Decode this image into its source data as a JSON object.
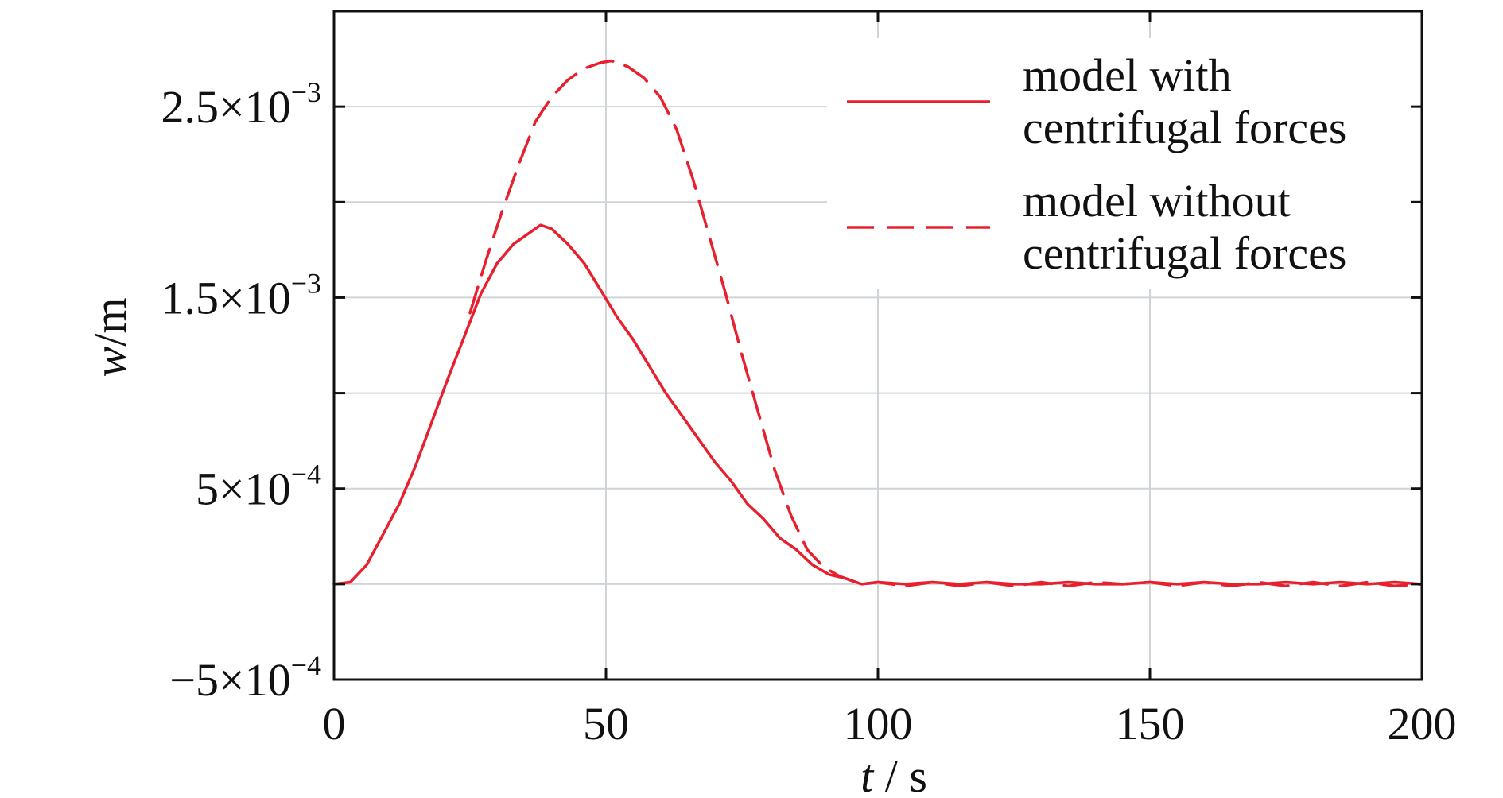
{
  "chart_data": {
    "type": "line",
    "title": "",
    "xlabel": {
      "var": "t",
      "unit": " / s"
    },
    "ylabel": {
      "var": "w",
      "unit": "/m"
    },
    "xlim": [
      0,
      200
    ],
    "ylim": [
      -0.0005,
      0.003
    ],
    "grid": true,
    "legend_position": "top-right",
    "x_ticks": [
      {
        "value": 0,
        "label": "0"
      },
      {
        "value": 50,
        "label": "50"
      },
      {
        "value": 100,
        "label": "100"
      },
      {
        "value": 150,
        "label": "150"
      },
      {
        "value": 200,
        "label": "200"
      }
    ],
    "y_ticks": [
      {
        "value": -0.0005,
        "label": "−5×10",
        "exp": "−4"
      },
      {
        "value": 0.0005,
        "label": "5×10",
        "exp": "−4"
      },
      {
        "value": 0.0015,
        "label": "1.5×10",
        "exp": "−3"
      },
      {
        "value": 0.0025,
        "label": "2.5×10",
        "exp": "−3"
      }
    ],
    "y_gridlines": [
      0,
      0.0005,
      0.001,
      0.0015,
      0.002,
      0.0025
    ],
    "series": [
      {
        "name": "model with centrifugal forces",
        "legend_lines": [
          "model with",
          "centrifugal forces"
        ],
        "style": "solid",
        "color": "#e8202e",
        "x": [
          0,
          3,
          6,
          9,
          12,
          15,
          18,
          21,
          24,
          27,
          30,
          33,
          36,
          38,
          40,
          43,
          46,
          49,
          52,
          55,
          58,
          61,
          64,
          67,
          70,
          73,
          76,
          79,
          82,
          85,
          88,
          91,
          94,
          96,
          97,
          100,
          105,
          110,
          115,
          120,
          125,
          130,
          135,
          140,
          145,
          150,
          155,
          160,
          165,
          170,
          175,
          180,
          185,
          190,
          195,
          200
        ],
        "y": [
          0,
          1e-05,
          0.0001,
          0.00026,
          0.00042,
          0.00062,
          0.00085,
          0.00108,
          0.0013,
          0.00152,
          0.00168,
          0.00178,
          0.00184,
          0.00188,
          0.00186,
          0.00178,
          0.00168,
          0.00154,
          0.0014,
          0.00128,
          0.00114,
          0.001,
          0.00088,
          0.00076,
          0.00064,
          0.00054,
          0.00042,
          0.00034,
          0.00024,
          0.00018,
          0.0001,
          5e-05,
          3e-05,
          1e-05,
          0,
          1e-05,
          0,
          1e-05,
          0,
          1e-05,
          0,
          0,
          1e-05,
          0,
          0,
          1e-05,
          0,
          1e-05,
          0,
          0,
          1e-05,
          0,
          1e-05,
          0,
          1e-05,
          0
        ]
      },
      {
        "name": "model without centrifugal forces",
        "legend_lines": [
          "model without",
          "centrifugal forces"
        ],
        "style": "dashed",
        "color": "#e8202e",
        "x": [
          25,
          28,
          31,
          34,
          37,
          40,
          43,
          46,
          49,
          51,
          54,
          57,
          60,
          63,
          66,
          69,
          72,
          75,
          78,
          81,
          84,
          87,
          90,
          93,
          96,
          97,
          100,
          105,
          110,
          115,
          120,
          125,
          130,
          135,
          140,
          145,
          150,
          155,
          160,
          165,
          170,
          175,
          180,
          185,
          190,
          195,
          200
        ],
        "y": [
          0.00142,
          0.0017,
          0.00196,
          0.0022,
          0.00242,
          0.00255,
          0.00264,
          0.0027,
          0.00273,
          0.00274,
          0.00271,
          0.00265,
          0.00255,
          0.00238,
          0.00212,
          0.00182,
          0.00152,
          0.0012,
          0.0009,
          0.0006,
          0.00036,
          0.00018,
          9e-05,
          4e-05,
          1e-05,
          0,
          1e-05,
          -1e-05,
          1e-05,
          -1e-05,
          1e-05,
          -1e-05,
          1e-05,
          -1e-05,
          1e-05,
          0,
          1e-05,
          -1e-05,
          1e-05,
          -1e-05,
          1e-05,
          -1e-05,
          1e-05,
          -1e-05,
          1e-05,
          -1e-05,
          0
        ]
      }
    ]
  }
}
